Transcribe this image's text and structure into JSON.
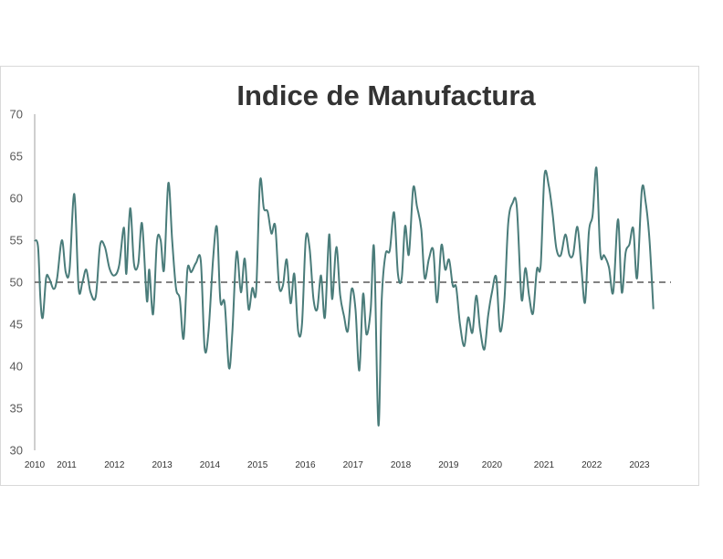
{
  "chart_data": {
    "type": "line",
    "title": "Indice de Manufactura",
    "xlabel": "",
    "ylabel": "",
    "ylim": [
      30,
      70
    ],
    "yticks": [
      30,
      35,
      40,
      45,
      50,
      55,
      60,
      65,
      70
    ],
    "xtick_labels": [
      {
        "label": "2010",
        "date": 2010.0
      },
      {
        "label": "2011",
        "date": 2010.67
      },
      {
        "label": "2012",
        "date": 2011.67
      },
      {
        "label": "2013",
        "date": 2012.67
      },
      {
        "label": "2014",
        "date": 2013.67
      },
      {
        "label": "2015",
        "date": 2014.67
      },
      {
        "label": "2016",
        "date": 2015.67
      },
      {
        "label": "2017",
        "date": 2016.67
      },
      {
        "label": "2018",
        "date": 2017.67
      },
      {
        "label": "2019",
        "date": 2018.67
      },
      {
        "label": "2020",
        "date": 2019.58
      },
      {
        "label": "2021",
        "date": 2020.67
      },
      {
        "label": "2022",
        "date": 2021.67
      },
      {
        "label": "2023",
        "date": 2022.67
      }
    ],
    "xlim": [
      2010.0,
      2023.33
    ],
    "grid": false,
    "legend": "none",
    "reference_line": {
      "value": 50,
      "style": "dashed",
      "color": "#595959"
    },
    "series": [
      {
        "color": "#4a7c7a",
        "points": [
          [
            2010.0,
            55.0
          ],
          [
            2010.07,
            54.2
          ],
          [
            2010.12,
            48.0
          ],
          [
            2010.17,
            45.8
          ],
          [
            2010.24,
            50.5
          ],
          [
            2010.3,
            50.5
          ],
          [
            2010.4,
            49.2
          ],
          [
            2010.47,
            50.5
          ],
          [
            2010.57,
            55.0
          ],
          [
            2010.65,
            51.2
          ],
          [
            2010.73,
            51.5
          ],
          [
            2010.83,
            60.5
          ],
          [
            2010.92,
            49.3
          ],
          [
            2011.0,
            50.0
          ],
          [
            2011.08,
            51.5
          ],
          [
            2011.17,
            48.8
          ],
          [
            2011.28,
            48.3
          ],
          [
            2011.37,
            54.4
          ],
          [
            2011.47,
            54.2
          ],
          [
            2011.57,
            51.6
          ],
          [
            2011.67,
            50.8
          ],
          [
            2011.77,
            52.0
          ],
          [
            2011.87,
            56.5
          ],
          [
            2011.92,
            51.0
          ],
          [
            2012.0,
            58.8
          ],
          [
            2012.08,
            52.2
          ],
          [
            2012.17,
            52.2
          ],
          [
            2012.25,
            57.0
          ],
          [
            2012.35,
            47.8
          ],
          [
            2012.4,
            51.5
          ],
          [
            2012.48,
            46.2
          ],
          [
            2012.56,
            54.8
          ],
          [
            2012.64,
            55.0
          ],
          [
            2012.71,
            51.5
          ],
          [
            2012.8,
            61.8
          ],
          [
            2012.88,
            55.0
          ],
          [
            2012.96,
            49.3
          ],
          [
            2013.04,
            48.0
          ],
          [
            2013.12,
            43.3
          ],
          [
            2013.2,
            51.5
          ],
          [
            2013.28,
            51.2
          ],
          [
            2013.38,
            52.3
          ],
          [
            2013.48,
            52.5
          ],
          [
            2013.56,
            42.2
          ],
          [
            2013.64,
            44.0
          ],
          [
            2013.74,
            53.0
          ],
          [
            2013.82,
            56.5
          ],
          [
            2013.89,
            47.8
          ],
          [
            2013.98,
            47.5
          ],
          [
            2014.07,
            39.8
          ],
          [
            2014.14,
            44.0
          ],
          [
            2014.23,
            53.6
          ],
          [
            2014.32,
            48.8
          ],
          [
            2014.4,
            52.8
          ],
          [
            2014.48,
            46.8
          ],
          [
            2014.56,
            49.3
          ],
          [
            2014.64,
            49.0
          ],
          [
            2014.72,
            62.0
          ],
          [
            2014.8,
            58.8
          ],
          [
            2014.88,
            58.4
          ],
          [
            2014.96,
            55.8
          ],
          [
            2015.04,
            56.7
          ],
          [
            2015.12,
            49.6
          ],
          [
            2015.2,
            49.6
          ],
          [
            2015.28,
            52.7
          ],
          [
            2015.36,
            47.5
          ],
          [
            2015.44,
            51.0
          ],
          [
            2015.52,
            44.2
          ],
          [
            2015.6,
            45.0
          ],
          [
            2015.68,
            55.2
          ],
          [
            2015.76,
            54.0
          ],
          [
            2015.84,
            48.0
          ],
          [
            2015.92,
            46.8
          ],
          [
            2016.0,
            50.8
          ],
          [
            2016.08,
            45.8
          ],
          [
            2016.17,
            55.7
          ],
          [
            2016.23,
            48.0
          ],
          [
            2016.32,
            54.2
          ],
          [
            2016.4,
            48.5
          ],
          [
            2016.48,
            46.0
          ],
          [
            2016.56,
            44.2
          ],
          [
            2016.64,
            49.2
          ],
          [
            2016.72,
            46.8
          ],
          [
            2016.8,
            39.5
          ],
          [
            2016.88,
            48.6
          ],
          [
            2016.95,
            43.8
          ],
          [
            2017.04,
            46.8
          ],
          [
            2017.11,
            54.0
          ],
          [
            2017.2,
            33.0
          ],
          [
            2017.27,
            47.8
          ],
          [
            2017.35,
            53.3
          ],
          [
            2017.44,
            53.8
          ],
          [
            2017.53,
            58.3
          ],
          [
            2017.61,
            51.0
          ],
          [
            2017.69,
            50.5
          ],
          [
            2017.76,
            56.7
          ],
          [
            2017.84,
            53.3
          ],
          [
            2017.93,
            61.2
          ],
          [
            2018.01,
            59.0
          ],
          [
            2018.1,
            56.3
          ],
          [
            2018.17,
            50.5
          ],
          [
            2018.26,
            52.8
          ],
          [
            2018.35,
            53.8
          ],
          [
            2018.43,
            47.6
          ],
          [
            2018.52,
            54.4
          ],
          [
            2018.6,
            51.5
          ],
          [
            2018.68,
            52.7
          ],
          [
            2018.76,
            49.6
          ],
          [
            2018.83,
            49.4
          ],
          [
            2018.91,
            45.0
          ],
          [
            2019.0,
            42.4
          ],
          [
            2019.08,
            45.8
          ],
          [
            2019.17,
            44.0
          ],
          [
            2019.25,
            48.4
          ],
          [
            2019.33,
            44.5
          ],
          [
            2019.42,
            42.0
          ],
          [
            2019.5,
            46.0
          ],
          [
            2019.58,
            48.8
          ],
          [
            2019.67,
            50.6
          ],
          [
            2019.75,
            44.2
          ],
          [
            2019.84,
            47.8
          ],
          [
            2019.92,
            57.0
          ],
          [
            2020.01,
            59.4
          ],
          [
            2020.1,
            59.0
          ],
          [
            2020.2,
            48.0
          ],
          [
            2020.28,
            51.7
          ],
          [
            2020.36,
            48.3
          ],
          [
            2020.44,
            46.3
          ],
          [
            2020.52,
            51.5
          ],
          [
            2020.6,
            52.0
          ],
          [
            2020.68,
            62.7
          ],
          [
            2020.77,
            61.5
          ],
          [
            2020.85,
            58.2
          ],
          [
            2020.93,
            54.0
          ],
          [
            2021.02,
            53.2
          ],
          [
            2021.12,
            55.7
          ],
          [
            2021.2,
            53.3
          ],
          [
            2021.28,
            53.3
          ],
          [
            2021.37,
            56.6
          ],
          [
            2021.45,
            52.0
          ],
          [
            2021.53,
            47.6
          ],
          [
            2021.61,
            56.0
          ],
          [
            2021.69,
            58.0
          ],
          [
            2021.77,
            63.6
          ],
          [
            2021.85,
            53.5
          ],
          [
            2021.93,
            53.2
          ],
          [
            2022.03,
            51.8
          ],
          [
            2022.12,
            48.8
          ],
          [
            2022.22,
            57.5
          ],
          [
            2022.3,
            48.8
          ],
          [
            2022.38,
            53.5
          ],
          [
            2022.46,
            54.5
          ],
          [
            2022.54,
            56.4
          ],
          [
            2022.62,
            50.5
          ],
          [
            2022.72,
            61.0
          ],
          [
            2022.8,
            59.5
          ],
          [
            2022.88,
            55.0
          ],
          [
            2022.96,
            46.8
          ]
        ]
      }
    ]
  }
}
